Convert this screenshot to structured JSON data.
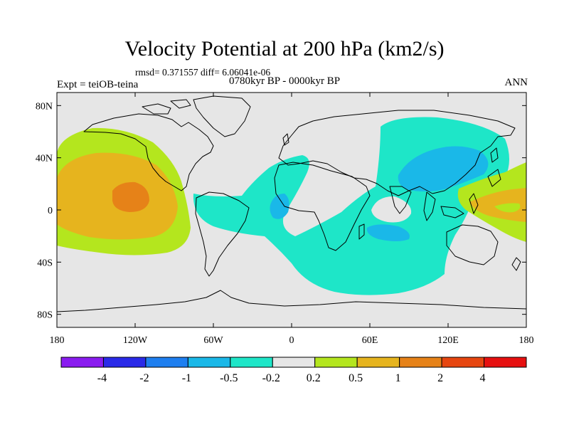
{
  "title": "Velocity Potential at 200 hPa (km2/s)",
  "stats": "rmsd= 0.371557  diff= 6.06041e-06",
  "experiment": "Expt = teiOB-teina",
  "period": "0780kyr BP - 0000kyr BP",
  "season": "ANN",
  "map": {
    "projection": "cylindrical equidistant",
    "lon_range": [
      -180,
      180
    ],
    "lat_range": [
      -90,
      90
    ],
    "background_color": "#e6e6e6",
    "lon_ticks": [
      {
        "value": -180,
        "label": "180"
      },
      {
        "value": -120,
        "label": "120W"
      },
      {
        "value": -60,
        "label": "60W"
      },
      {
        "value": 0,
        "label": "0"
      },
      {
        "value": 60,
        "label": "60E"
      },
      {
        "value": 120,
        "label": "120E"
      },
      {
        "value": 180,
        "label": "180"
      }
    ],
    "lat_ticks": [
      {
        "value": 80,
        "label": "80N"
      },
      {
        "value": 40,
        "label": "40N"
      },
      {
        "value": 0,
        "label": "0"
      },
      {
        "value": -40,
        "label": "40S"
      },
      {
        "value": -80,
        "label": "80S"
      }
    ]
  },
  "chart_data": {
    "type": "heatmap",
    "variable": "velocity potential difference at 200 hPa",
    "units": "km2/s",
    "levels": [
      "-4",
      "-2",
      "-1",
      "-0.5",
      "-0.2",
      "0.2",
      "0.5",
      "1",
      "2",
      "4"
    ],
    "bin_colors": [
      "#8a1cf0",
      "#2a2ae8",
      "#1e7ff0",
      "#1ab8e8",
      "#1ee6c8",
      "#e6e6e6",
      "#b4e61e",
      "#e6b41e",
      "#e68218",
      "#e64610",
      "#e61010"
    ],
    "regions": [
      {
        "name": "North Pacific positive region",
        "value_range": "0.2 to 0.5",
        "lon": [
          -180,
          -90
        ],
        "lat": [
          -30,
          60
        ]
      },
      {
        "name": "North Pacific core",
        "value_range": "0.5 to 1",
        "lon": [
          -180,
          -100
        ],
        "lat": [
          -15,
          45
        ]
      },
      {
        "name": "North Pacific maximum",
        "value_range": "1 to 2",
        "lon": [
          -150,
          -130
        ],
        "lat": [
          2,
          18
        ]
      },
      {
        "name": "Western Pacific positive region",
        "value_range": "0.2 to 1",
        "lon": [
          140,
          180
        ],
        "lat": [
          -10,
          25
        ]
      },
      {
        "name": "Atlantic / Indian Ocean / East Asia negative region",
        "value_range": "-0.5 to -0.2",
        "lon": [
          -80,
          180
        ],
        "lat": [
          -65,
          75
        ]
      },
      {
        "name": "East Asia minimum",
        "value_range": "-1 to -0.5",
        "lon": [
          70,
          150
        ],
        "lat": [
          10,
          50
        ]
      },
      {
        "name": "Atlantic minimum",
        "value_range": "-1 to -0.5",
        "lon": [
          -22,
          -8
        ],
        "lat": [
          -2,
          12
        ]
      },
      {
        "name": "Indian Ocean minimum",
        "value_range": "-1 to -0.5",
        "lon": [
          50,
          80
        ],
        "lat": [
          -15,
          -5
        ]
      }
    ]
  }
}
